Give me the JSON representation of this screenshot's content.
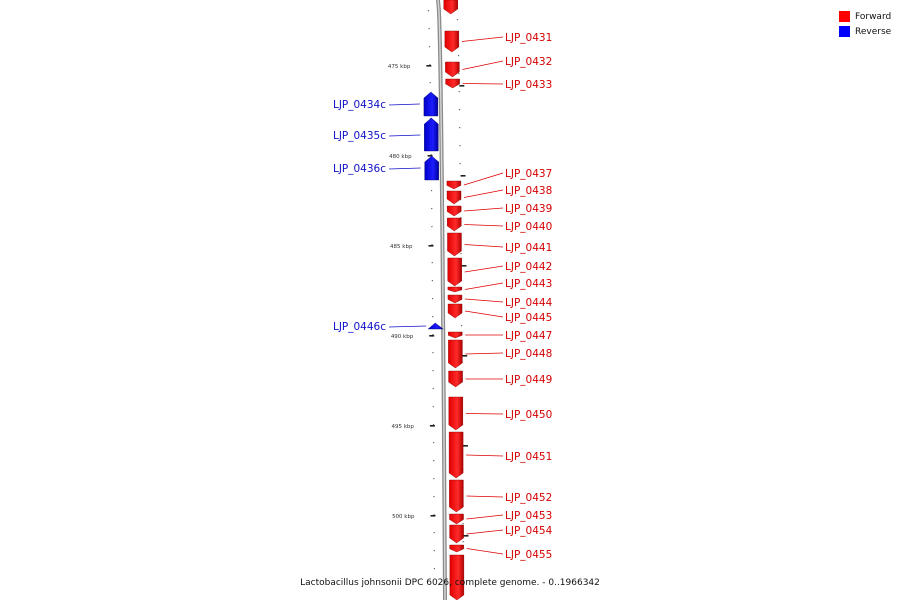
{
  "legend": {
    "forward": {
      "label": "Forward",
      "color": "#ff0000"
    },
    "reverse": {
      "label": "Reverse",
      "color": "#0000ff"
    }
  },
  "footer": "Lactobacillus johnsonii DPC 6026, complete genome. - 0..1966342",
  "axis": {
    "ticks": [
      {
        "kbp": 475,
        "label": "475 kbp"
      },
      {
        "kbp": 480,
        "label": "480 kbp"
      },
      {
        "kbp": 485,
        "label": "485 kbp"
      },
      {
        "kbp": 490,
        "label": "490 kbp"
      },
      {
        "kbp": 495,
        "label": "495 kbp"
      },
      {
        "kbp": 500,
        "label": "500 kbp"
      }
    ]
  },
  "genes": [
    {
      "name": "",
      "strand": "forward"
    },
    {
      "name": "LJP_0431",
      "strand": "forward"
    },
    {
      "name": "LJP_0432",
      "strand": "forward"
    },
    {
      "name": "LJP_0433",
      "strand": "forward"
    },
    {
      "name": "LJP_0434c",
      "strand": "reverse"
    },
    {
      "name": "LJP_0435c",
      "strand": "reverse"
    },
    {
      "name": "LJP_0436c",
      "strand": "reverse"
    },
    {
      "name": "LJP_0437",
      "strand": "forward"
    },
    {
      "name": "LJP_0438",
      "strand": "forward"
    },
    {
      "name": "LJP_0439",
      "strand": "forward"
    },
    {
      "name": "LJP_0440",
      "strand": "forward"
    },
    {
      "name": "LJP_0441",
      "strand": "forward"
    },
    {
      "name": "LJP_0442",
      "strand": "forward"
    },
    {
      "name": "LJP_0443",
      "strand": "forward"
    },
    {
      "name": "LJP_0444",
      "strand": "forward"
    },
    {
      "name": "LJP_0445",
      "strand": "forward"
    },
    {
      "name": "LJP_0446c",
      "strand": "reverse"
    },
    {
      "name": "LJP_0447",
      "strand": "forward"
    },
    {
      "name": "LJP_0448",
      "strand": "forward"
    },
    {
      "name": "LJP_0449",
      "strand": "forward"
    },
    {
      "name": "LJP_0450",
      "strand": "forward"
    },
    {
      "name": "LJP_0451",
      "strand": "forward"
    },
    {
      "name": "LJP_0452",
      "strand": "forward"
    },
    {
      "name": "LJP_0453",
      "strand": "forward"
    },
    {
      "name": "LJP_0454",
      "strand": "forward"
    },
    {
      "name": "LJP_0455",
      "strand": "forward"
    },
    {
      "name": "",
      "strand": "forward"
    }
  ]
}
